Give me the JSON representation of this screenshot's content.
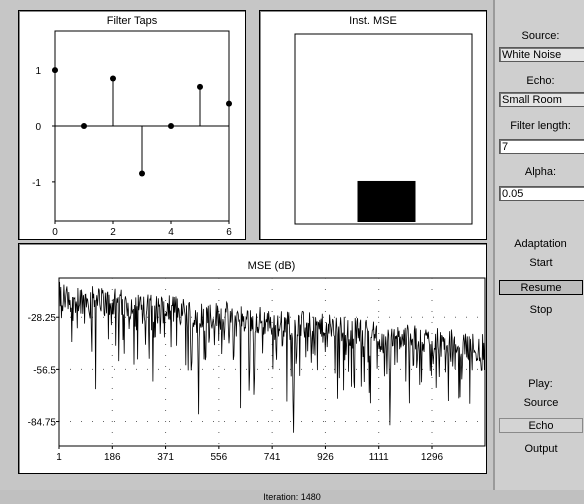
{
  "panels": {
    "taps_title": "Filter Taps",
    "inst_mse_title": "Inst. MSE",
    "mse_title": "MSE (dB)"
  },
  "side": {
    "source_label": "Source:",
    "source_value": "White Noise",
    "echo_label": "Echo:",
    "echo_value": "Small Room",
    "filter_length_label": "Filter length:",
    "filter_length_value": "7",
    "alpha_label": "Alpha:",
    "alpha_value": "0.05",
    "adaptation_label": "Adaptation",
    "start_label": "Start",
    "resume_label": "Resume",
    "stop_label": "Stop",
    "play_label": "Play:",
    "play_source_label": "Source",
    "play_echo_label": "Echo",
    "play_output_label": "Output"
  },
  "status": {
    "iteration": "Iteration:   1480"
  },
  "chart_data": [
    {
      "type": "scatter",
      "title": "Filter Taps",
      "x": [
        0,
        1,
        2,
        3,
        4,
        5,
        6
      ],
      "values": [
        1.0,
        0.0,
        0.85,
        -0.85,
        0.0,
        0.7,
        0.4
      ],
      "xlim": [
        0,
        6
      ],
      "ylim": [
        -1.7,
        1.7
      ],
      "xticks": [
        "0",
        "2",
        "4",
        "6"
      ],
      "yticks": [
        "1",
        "0",
        "-1"
      ]
    },
    {
      "type": "bar",
      "title": "Inst. MSE",
      "values": [
        0.3
      ]
    },
    {
      "type": "line",
      "title": "MSE (dB)",
      "xlim": [
        1,
        1480
      ],
      "ylim": [
        -98,
        -7
      ],
      "xticks": [
        "1",
        "186",
        "371",
        "556",
        "741",
        "926",
        "1111",
        "1296"
      ],
      "yticks": [
        "-28.25",
        "-56.5",
        "-84.75"
      ],
      "y_start": -17,
      "y_end": -45
    }
  ]
}
